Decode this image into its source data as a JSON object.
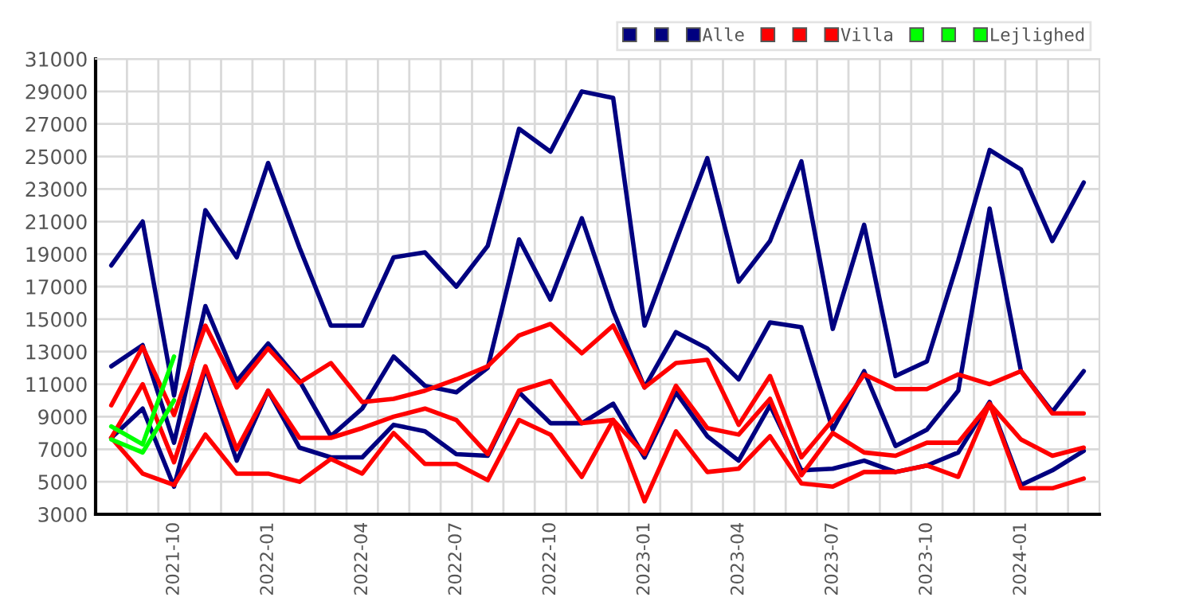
{
  "chart_data": {
    "type": "line",
    "categories": [
      null,
      null,
      "2021-10",
      null,
      null,
      "2022-01",
      null,
      null,
      "2022-04",
      null,
      null,
      "2022-07",
      null,
      null,
      "2022-10",
      null,
      null,
      "2023-01",
      null,
      null,
      "2023-04",
      null,
      null,
      "2023-07",
      null,
      null,
      "2023-10",
      null,
      null,
      "2024-01",
      null,
      null
    ],
    "series": [
      {
        "color": "#000080",
        "values": [
          18300,
          21000,
          10300,
          21700,
          18800,
          24600,
          19400,
          14600,
          14600,
          18800,
          19100,
          17000,
          19500,
          26700,
          25300,
          29000,
          28600,
          14600,
          19800,
          24900,
          17300,
          19800,
          24700,
          14400,
          20800,
          11500,
          12400,
          18600,
          25400,
          24200,
          19800,
          23400
        ]
      },
      {
        "color": "#000080",
        "values": [
          12100,
          13400,
          7400,
          15800,
          11200,
          13500,
          11200,
          7800,
          9500,
          12700,
          10900,
          10500,
          12000,
          19900,
          16200,
          21200,
          15500,
          10800,
          14200,
          13200,
          11300,
          14800,
          14500,
          8200,
          11800,
          7200,
          8200,
          10600,
          21800,
          11800,
          9300,
          11800
        ]
      },
      {
        "name": "Alle",
        "color": "#000080",
        "values": [
          7700,
          9500,
          4700,
          12000,
          6300,
          10600,
          7100,
          6500,
          6500,
          8500,
          8100,
          6700,
          6600,
          10500,
          8600,
          8600,
          9800,
          6500,
          10500,
          7800,
          6300,
          9700,
          5700,
          5800,
          6300,
          5600,
          6000,
          6800,
          9900,
          4800,
          5700,
          6900
        ]
      },
      {
        "color": "#ff0000",
        "values": [
          9700,
          13300,
          9100,
          14600,
          10800,
          13200,
          11100,
          12300,
          9900,
          10100,
          10600,
          11300,
          12100,
          14000,
          14700,
          12900,
          14600,
          10800,
          12300,
          12500,
          8500,
          11500,
          6500,
          8800,
          11600,
          10700,
          10700,
          11600,
          11000,
          11800,
          9200,
          9200
        ]
      },
      {
        "color": "#ff0000",
        "values": [
          7700,
          11000,
          6200,
          12100,
          7000,
          10600,
          7700,
          7700,
          8300,
          9000,
          9500,
          8800,
          6700,
          10600,
          11200,
          8600,
          8800,
          6700,
          10900,
          8300,
          7900,
          10100,
          5400,
          8000,
          6800,
          6600,
          7400,
          7400,
          9800,
          7600,
          6600,
          7100
        ]
      },
      {
        "name": "Villa",
        "color": "#ff0000",
        "values": [
          7700,
          5500,
          4800,
          7900,
          5500,
          5500,
          5000,
          6400,
          5500,
          8000,
          6100,
          6100,
          5100,
          8800,
          7900,
          5300,
          8800,
          3800,
          8100,
          5600,
          5800,
          7800,
          4900,
          4700,
          5600,
          5600,
          6000,
          5300,
          9800,
          4600,
          4600,
          5200
        ]
      },
      {
        "color": "#00ff00",
        "values": [
          8400,
          7300,
          12700,
          null,
          null,
          null,
          null,
          null,
          null,
          null,
          null,
          null,
          null,
          null,
          null,
          null,
          null,
          null,
          null,
          null,
          null,
          null,
          null,
          null,
          null,
          null,
          null,
          null,
          null,
          null,
          null,
          null
        ]
      },
      {
        "color": "#00ff00",
        "values": [
          7600,
          6800,
          10000,
          null,
          null,
          null,
          null,
          null,
          null,
          null,
          null,
          null,
          null,
          null,
          null,
          null,
          null,
          null,
          null,
          null,
          null,
          null,
          null,
          null,
          null,
          null,
          null,
          null,
          null,
          null,
          null,
          null
        ]
      },
      {
        "name": "Lejlighed",
        "color": "#00ff00",
        "values": [
          null,
          null,
          null,
          null,
          null,
          null,
          null,
          null,
          null,
          null,
          null,
          null,
          null,
          null,
          null,
          null,
          null,
          null,
          null,
          null,
          null,
          null,
          null,
          null,
          null,
          null,
          null,
          null,
          null,
          null,
          null,
          null
        ]
      }
    ],
    "ylim": [
      3000,
      31000
    ],
    "yticks": [
      3000,
      5000,
      7000,
      9000,
      11000,
      13000,
      15000,
      17000,
      19000,
      21000,
      23000,
      25000,
      27000,
      29000,
      31000
    ],
    "grid": true,
    "legend": "top right",
    "marker": "none",
    "line_style": "solid"
  }
}
